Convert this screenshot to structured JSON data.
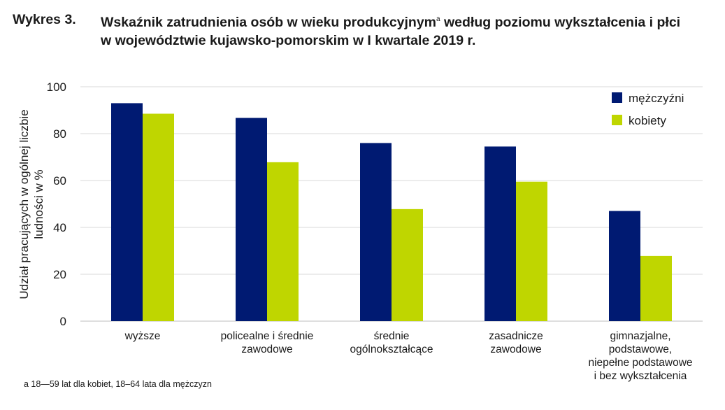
{
  "title": {
    "label": "Wykres 3.",
    "line1_main": "Wskaźnik zatrudnienia osób w wieku produkcyjnym",
    "line1_sup": "a",
    "line1_rest": " według poziomu wykształcenia i płci",
    "line2": "w województwie kujawsko-pomorskim w I kwartale 2019 r."
  },
  "footnote": "a 18—59 lat dla kobiet, 18–64 lata dla mężczyzn",
  "colors": {
    "men": "#001a72",
    "women": "#bfd600",
    "grid": "#d9d9d9",
    "axis": "#bfbfbf"
  },
  "chart_data": {
    "type": "bar",
    "ylabel_lines": [
      "Udział pracujących w ogólnej liczbie",
      "ludności w %"
    ],
    "ylim": [
      0,
      100
    ],
    "yticks": [
      0,
      20,
      40,
      60,
      80,
      100
    ],
    "grid": true,
    "legend_placement": "top-right",
    "categories": [
      [
        "wyższe"
      ],
      [
        "policealne i średnie",
        "zawodowe"
      ],
      [
        "średnie",
        "ogólnokształcące"
      ],
      [
        "zasadnicze",
        "zawodowe"
      ],
      [
        "gimnazjalne,",
        "podstawowe,",
        "niepełne podstawowe",
        "i bez wykształcenia"
      ]
    ],
    "series": [
      {
        "name": "mężczyźni",
        "values": [
          93.0,
          86.7,
          76.0,
          74.5,
          47.0
        ]
      },
      {
        "name": "kobiety",
        "values": [
          88.5,
          67.8,
          47.8,
          59.5,
          27.8
        ]
      }
    ]
  }
}
